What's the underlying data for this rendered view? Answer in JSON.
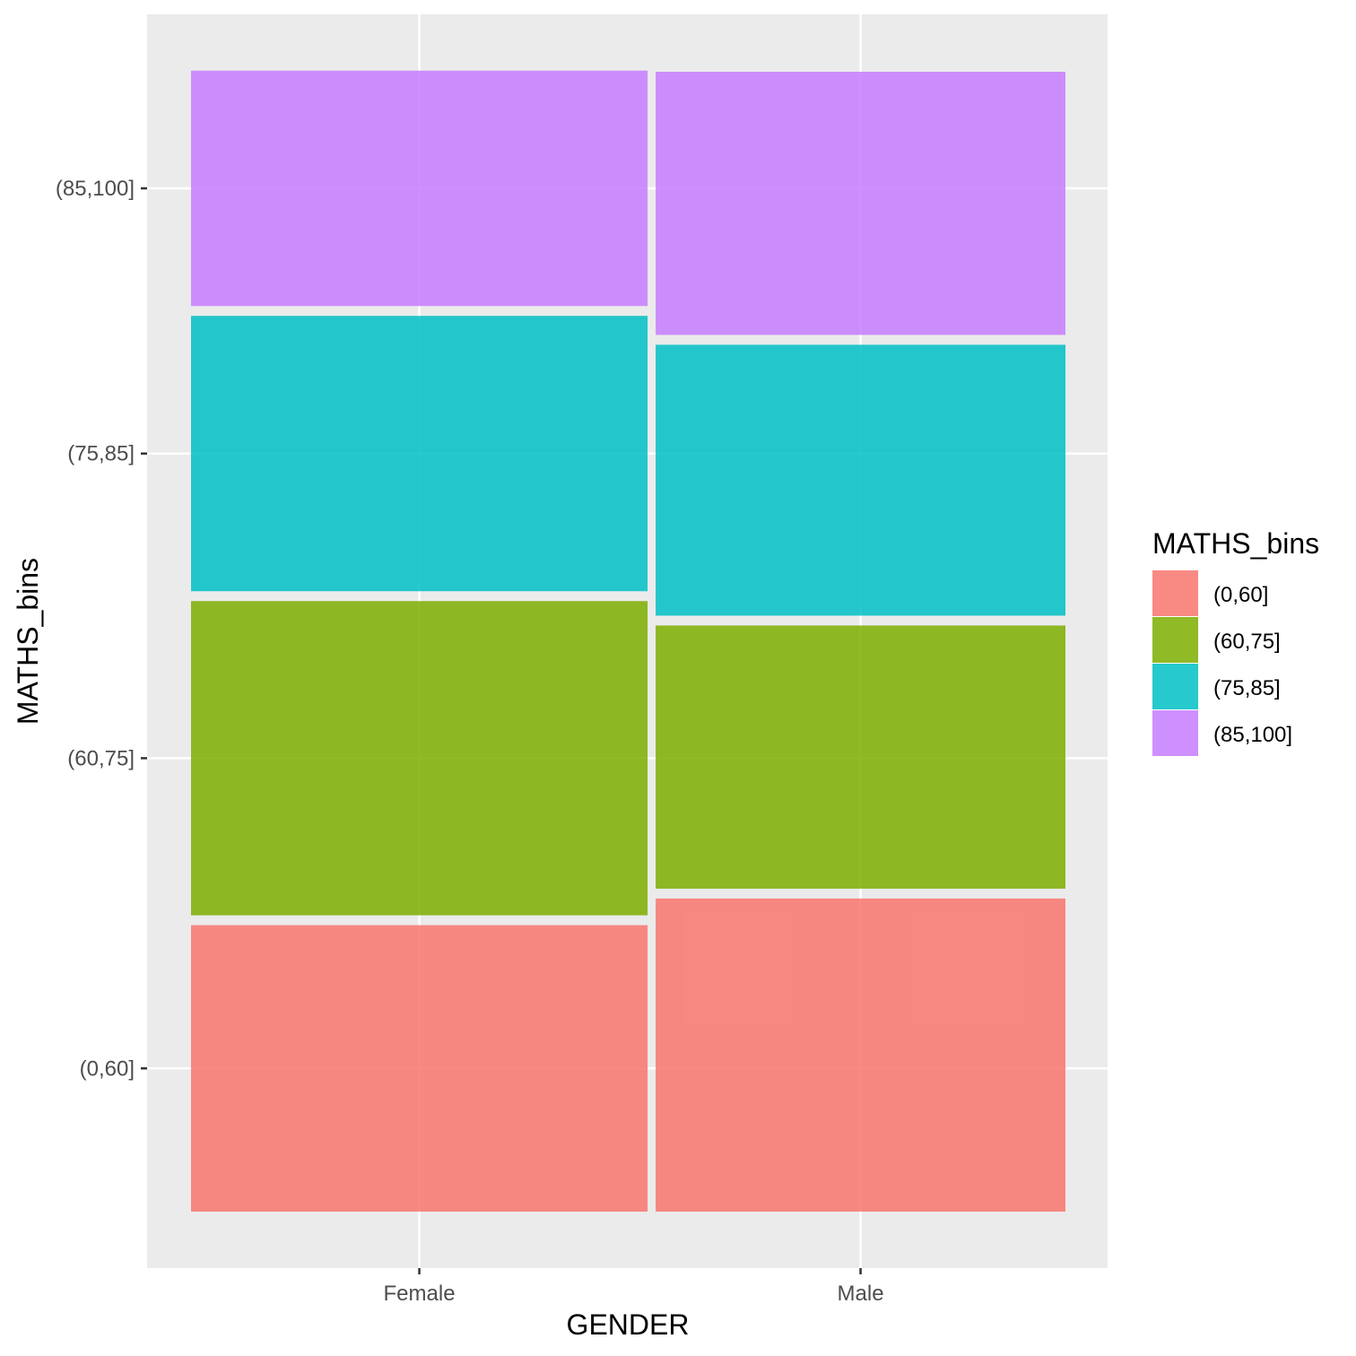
{
  "chart_data": {
    "type": "mosaic",
    "title": "",
    "xlabel": "GENDER",
    "ylabel": "MATHS_bins",
    "categories": [
      "Female",
      "Male"
    ],
    "category_proportions": [
      0.527,
      0.473
    ],
    "series": [
      {
        "name": "(0,60]",
        "color": "#F8766D",
        "values": [
          0.258,
          0.282
        ]
      },
      {
        "name": "(60,75]",
        "color": "#7CAE00",
        "values": [
          0.283,
          0.237
        ]
      },
      {
        "name": "(75,85]",
        "color": "#00BFC4",
        "values": [
          0.248,
          0.244
        ]
      },
      {
        "name": "(85,100]",
        "color": "#C77CFF",
        "values": [
          0.212,
          0.237
        ]
      }
    ],
    "y_tick_labels": [
      "(0,60]",
      "(60,75]",
      "(75,85]",
      "(85,100]"
    ],
    "legend": {
      "title": "MATHS_bins",
      "position": "right"
    },
    "grid": true
  }
}
